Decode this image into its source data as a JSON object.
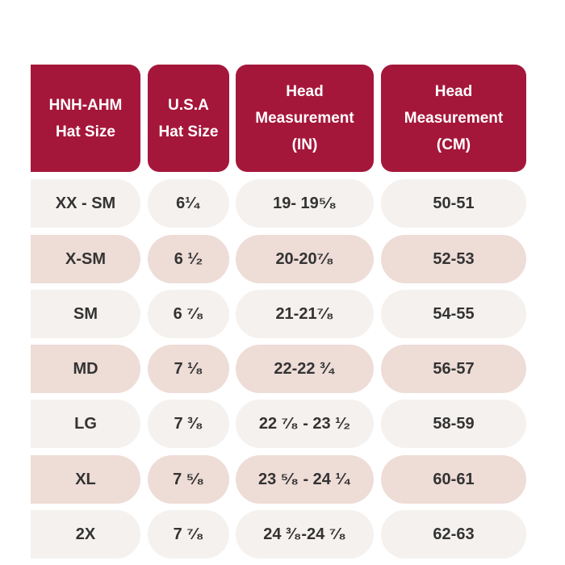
{
  "headers": [
    "HNH-AHM\nHat Size",
    "U.S.A\nHat Size",
    "Head\nMeasurement\n(IN)",
    "Head\nMeasurement\n(CM)"
  ],
  "rows": [
    {
      "hnh": "XX - SM",
      "usa": "6¹⁄₄",
      "in": "19- 19⁵⁄₈",
      "cm": "50-51"
    },
    {
      "hnh": "X-SM",
      "usa": "6 ¹⁄₂",
      "in": "20-20⁷⁄₈",
      "cm": "52-53"
    },
    {
      "hnh": "SM",
      "usa": "6 ⁷⁄₈",
      "in": "21-21⁷⁄₈",
      "cm": "54-55"
    },
    {
      "hnh": "MD",
      "usa": "7 ¹⁄₈",
      "in": "22-22 ³⁄₄",
      "cm": "56-57"
    },
    {
      "hnh": "LG",
      "usa": "7 ³⁄₈",
      "in": "22 ⁷⁄₈ - 23 ¹⁄₂",
      "cm": "58-59"
    },
    {
      "hnh": "XL",
      "usa": "7 ⁵⁄₈",
      "in": "23 ⁵⁄₈ - 24 ¹⁄₄",
      "cm": "60-61"
    },
    {
      "hnh": "2X",
      "usa": "7 ⁷⁄₈",
      "in": "24 ³⁄₈-24 ⁷⁄₈",
      "cm": "62-63"
    }
  ],
  "colors": {
    "header_bg": "#a5173a",
    "header_text": "#ffffff",
    "row_light": "#f4f1ee",
    "row_pink": "#eedcd7",
    "cell_text": "#333333"
  }
}
